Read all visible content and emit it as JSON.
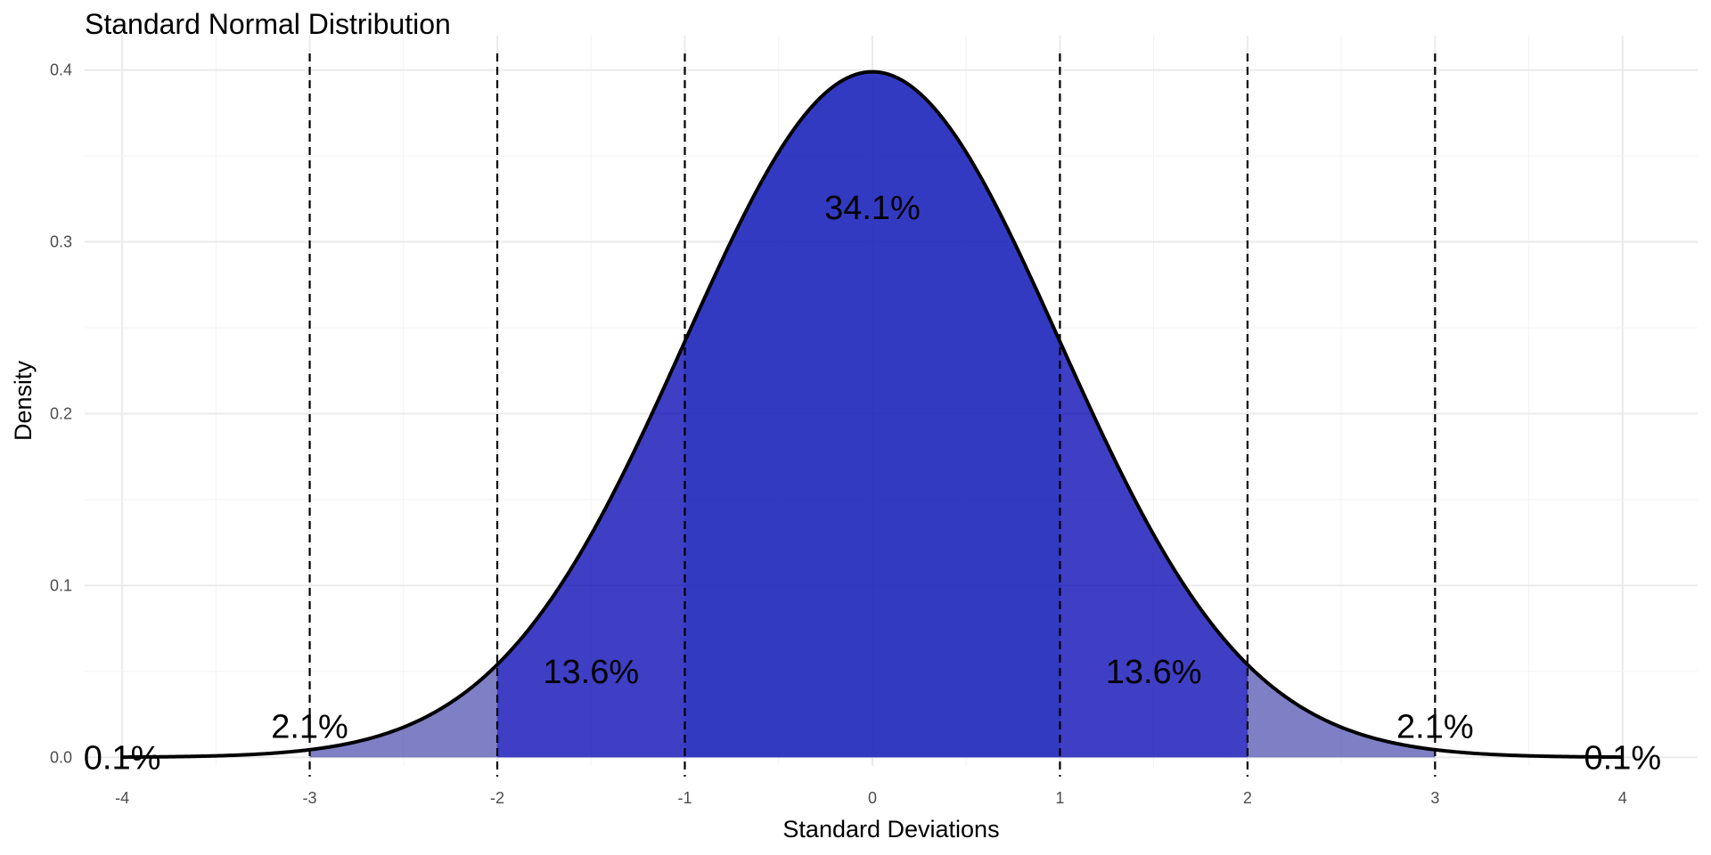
{
  "chart_data": {
    "type": "area",
    "title": "Standard Normal Distribution",
    "xlabel": "Standard Deviations",
    "ylabel": "Density",
    "xlim": [
      -4.2,
      4.4
    ],
    "ylim": [
      -0.005,
      0.42
    ],
    "x_ticks": [
      -4,
      -3,
      -2,
      -1,
      0,
      1,
      2,
      3,
      4
    ],
    "y_ticks": [
      0.0,
      0.1,
      0.2,
      0.3,
      0.4
    ],
    "x_tick_labels": [
      "-4",
      "-3",
      "-2",
      "-1",
      "0",
      "1",
      "2",
      "3",
      "4"
    ],
    "y_tick_labels": [
      "0.0",
      "0.1",
      "0.2",
      "0.3",
      "0.4"
    ],
    "grid": true,
    "curve": {
      "name": "Standard Normal",
      "mean": 0,
      "sd": 1,
      "color": "#000000"
    },
    "shaded_regions": [
      {
        "from": -1,
        "to": 1,
        "color": "#add8e6",
        "opacity": 0.6
      },
      {
        "from": -2,
        "to": 2,
        "color": "#0000ff",
        "opacity": 0.5
      },
      {
        "from": -3,
        "to": 3,
        "color": "#00008b",
        "opacity": 0.5
      }
    ],
    "vlines": [
      -3,
      -2,
      -1,
      1,
      2,
      3
    ],
    "annotations": [
      {
        "x": 0,
        "y": 0.32,
        "text": "34.1%"
      },
      {
        "x": -1.5,
        "y": 0.05,
        "text": "13.6%"
      },
      {
        "x": 1.5,
        "y": 0.05,
        "text": "13.6%"
      },
      {
        "x": -3,
        "y": 0.018,
        "text": "2.1%"
      },
      {
        "x": 3,
        "y": 0.018,
        "text": "2.1%"
      },
      {
        "x": -4,
        "y": 0,
        "text": "0.1%"
      },
      {
        "x": 4,
        "y": 0,
        "text": "0.1%"
      }
    ]
  }
}
